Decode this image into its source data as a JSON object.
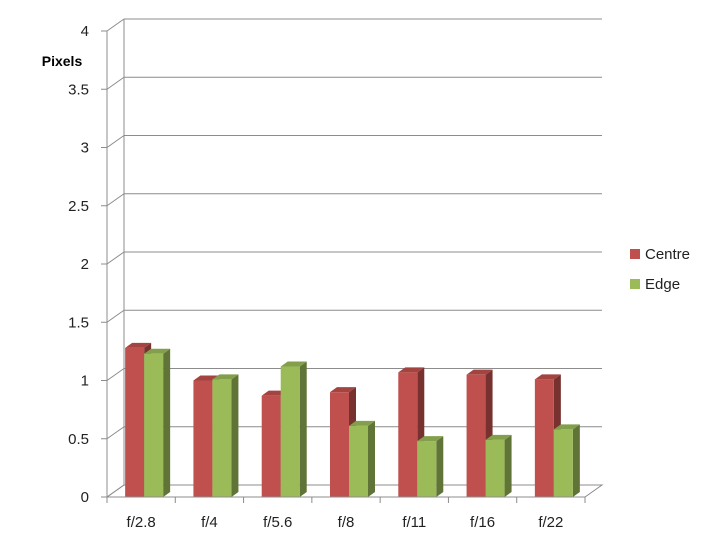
{
  "chart_data": {
    "type": "bar",
    "three_d": true,
    "title": "",
    "xlabel": "",
    "ylabel": "Pixels",
    "ylim": [
      0,
      4
    ],
    "yticks": [
      0,
      0.5,
      1,
      1.5,
      2,
      2.5,
      3,
      3.5,
      4
    ],
    "ytick_labels": [
      "0",
      "0.5",
      "1",
      "1.5",
      "2",
      "2.5",
      "3",
      "3.5",
      "4"
    ],
    "grid": true,
    "legend_position": "right",
    "categories": [
      "f/2.8",
      "f/4",
      "f/5.6",
      "f/8",
      "f/11",
      "f/16",
      "f/22"
    ],
    "series": [
      {
        "name": "Centre",
        "color": "#c0504d",
        "values": [
          1.28,
          1.0,
          0.87,
          0.9,
          1.07,
          1.05,
          1.01
        ]
      },
      {
        "name": "Edge",
        "color": "#9bbb59",
        "values": [
          1.23,
          1.01,
          1.12,
          0.61,
          0.48,
          0.49,
          0.58
        ]
      }
    ]
  }
}
